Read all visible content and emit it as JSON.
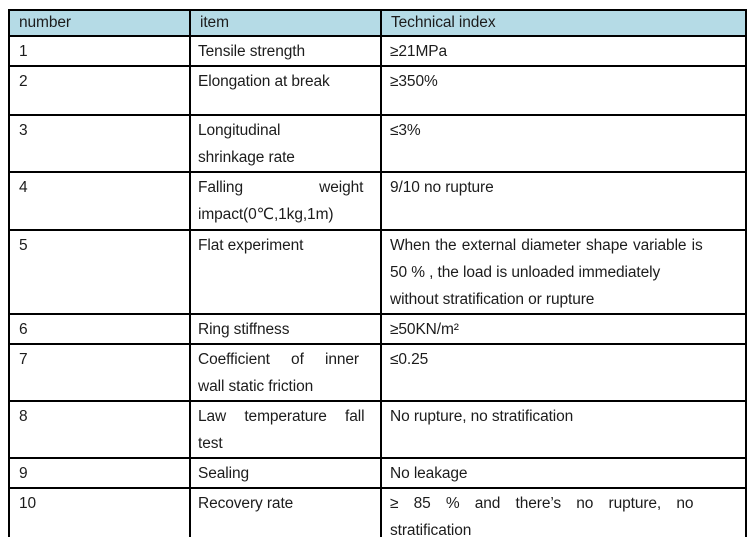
{
  "colors": {
    "header_background": "#b5dbe6",
    "border": "#000000",
    "text": "#1c1c1c",
    "page_background": "#ffffff"
  },
  "table": {
    "headers": {
      "number": "number",
      "item": "item",
      "index": "Technical index"
    },
    "rows": [
      {
        "number": "1",
        "item": "Tensile strength",
        "index": "≥21MPa"
      },
      {
        "number": "2",
        "item": "Elongation at break",
        "index": "≥350%"
      },
      {
        "number": "3",
        "item": "Longitudinal\nshrinkage rate",
        "index": "≤3%"
      },
      {
        "number": "4",
        "item": "Falling weight\nimpact(0℃,1kg,1m)",
        "index": "9/10 no rupture"
      },
      {
        "number": "5",
        "item": "Flat experiment",
        "index": "When the external diameter shape variable is\n50 % , the load is unloaded immediately\nwithout stratification or rupture"
      },
      {
        "number": "6",
        "item": "Ring stiffness",
        "index": "≥50KN/m²"
      },
      {
        "number": "7",
        "item": "Coefficient of inner\nwall static friction",
        "index": "≤0.25"
      },
      {
        "number": "8",
        "item": "Law temperature fall\ntest",
        "index": "No rupture, no stratification"
      },
      {
        "number": "9",
        "item": "Sealing",
        "index": "No leakage"
      },
      {
        "number": "10",
        "item": "Recovery rate",
        "index": "≥ 85 % and there’s no rupture, no\nstratification"
      }
    ]
  }
}
